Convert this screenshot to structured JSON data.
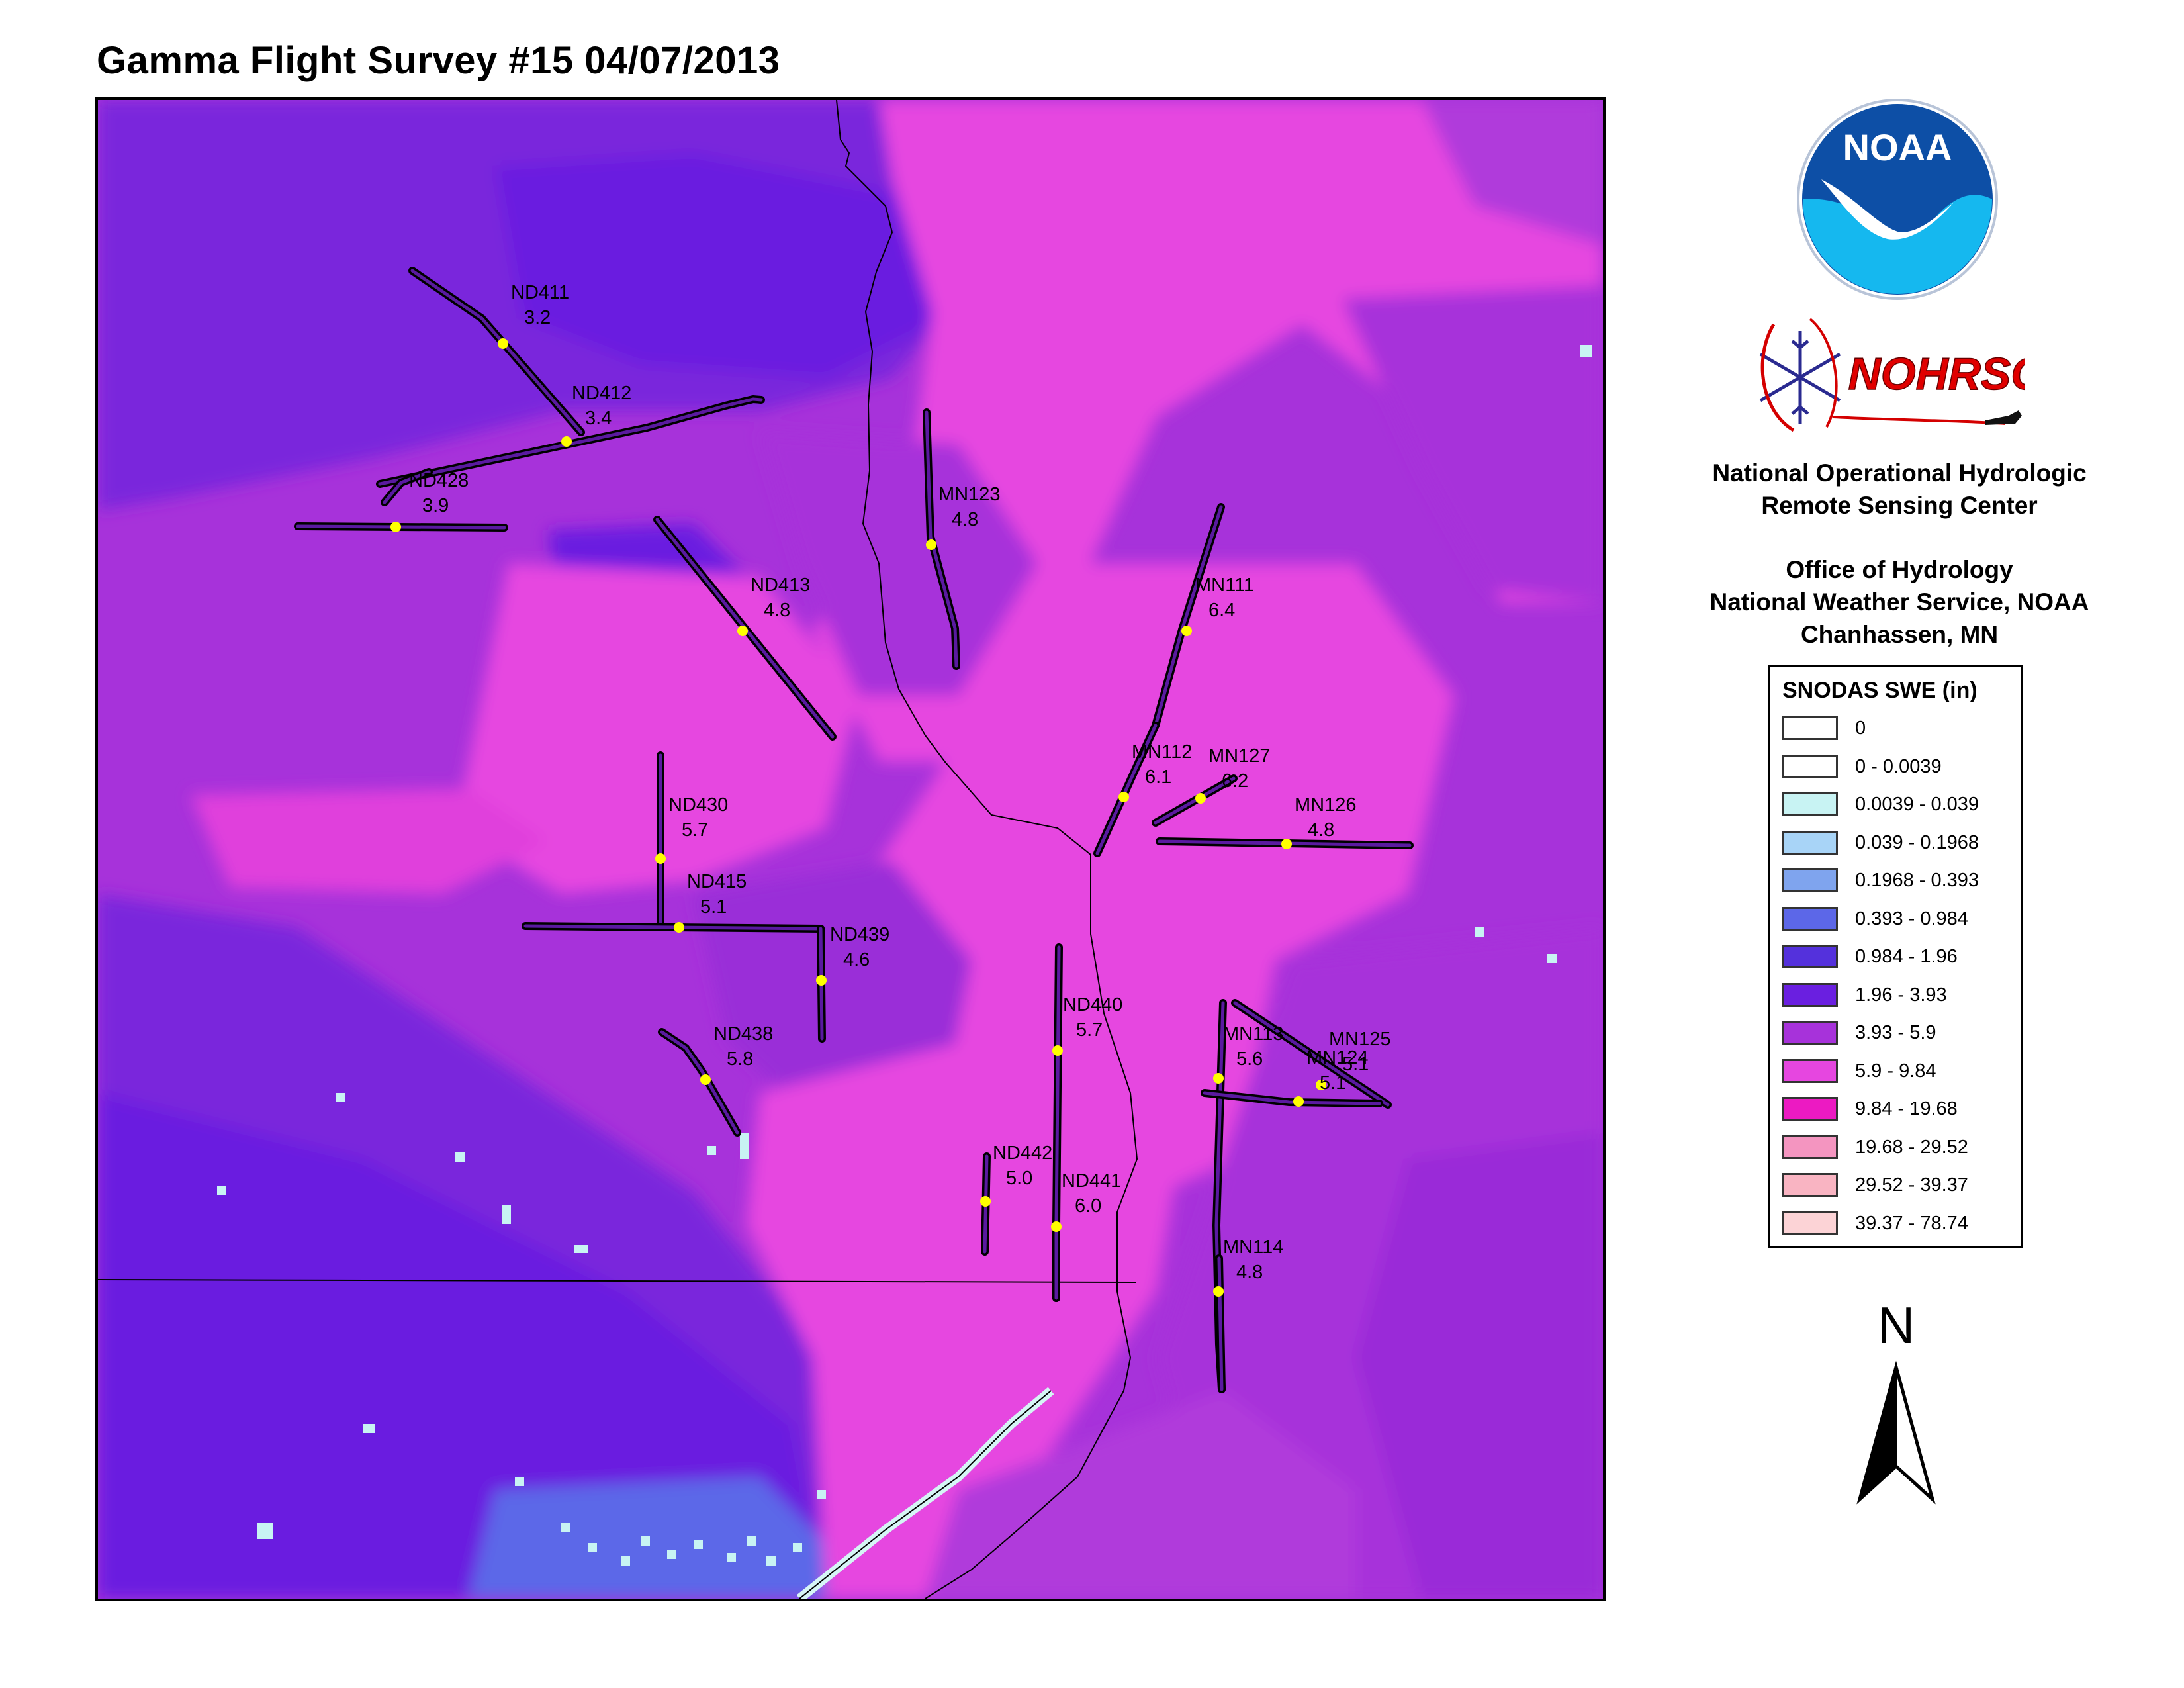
{
  "title": "Gamma Flight Survey #15 04/07/2013",
  "logos": {
    "noaa_text": "NOAA",
    "nohrsc_text": "NOHRSC"
  },
  "org": {
    "line1": "National Operational Hydrologic",
    "line2": "Remote Sensing Center",
    "line3": "Office of Hydrology",
    "line4": "National Weather Service, NOAA",
    "line5": "Chanhassen, MN"
  },
  "legend": {
    "title": "SNODAS SWE (in)",
    "items": [
      {
        "label": "0",
        "color": "#ffffff"
      },
      {
        "label": "0 - 0.0039",
        "color": "#ffffff"
      },
      {
        "label": "0.0039 - 0.039",
        "color": "#c8f3f3"
      },
      {
        "label": "0.039 - 0.1968",
        "color": "#a8d4f7"
      },
      {
        "label": "0.1968 - 0.393",
        "color": "#7fa4ee"
      },
      {
        "label": "0.393 - 0.984",
        "color": "#5c67e8"
      },
      {
        "label": "0.984 - 1.96",
        "color": "#5431dc"
      },
      {
        "label": "1.96 - 3.93",
        "color": "#6a1fe0"
      },
      {
        "label": "3.93 - 5.9",
        "color": "#a732da"
      },
      {
        "label": "5.9 - 9.84",
        "color": "#e646e0"
      },
      {
        "label": "9.84 - 19.68",
        "color": "#ec1ac2"
      },
      {
        "label": "19.68 - 29.52",
        "color": "#f495c0"
      },
      {
        "label": "29.52 - 39.37",
        "color": "#f9b4c2"
      },
      {
        "label": "39.37 - 78.74",
        "color": "#fcd3d6"
      }
    ]
  },
  "north_label": "N",
  "flight_lines": [
    {
      "id": "ND411",
      "value": "3.2"
    },
    {
      "id": "ND412",
      "value": "3.4"
    },
    {
      "id": "ND428",
      "value": "3.9"
    },
    {
      "id": "MN123",
      "value": "4.8"
    },
    {
      "id": "ND413",
      "value": "4.8"
    },
    {
      "id": "MN111",
      "value": "6.4"
    },
    {
      "id": "MN112",
      "value": "6.1"
    },
    {
      "id": "MN127",
      "value": "6.2"
    },
    {
      "id": "MN126",
      "value": "4.8"
    },
    {
      "id": "ND430",
      "value": "5.7"
    },
    {
      "id": "ND415",
      "value": "5.1"
    },
    {
      "id": "ND439",
      "value": "4.6"
    },
    {
      "id": "ND440",
      "value": "5.7"
    },
    {
      "id": "ND438",
      "value": "5.8"
    },
    {
      "id": "MN113",
      "value": "5.6"
    },
    {
      "id": "MN125",
      "value": "5.1"
    },
    {
      "id": "MN124",
      "value": "5.1"
    },
    {
      "id": "ND442",
      "value": "5.0"
    },
    {
      "id": "ND441",
      "value": "6.0"
    },
    {
      "id": "MN114",
      "value": "4.8"
    }
  ]
}
